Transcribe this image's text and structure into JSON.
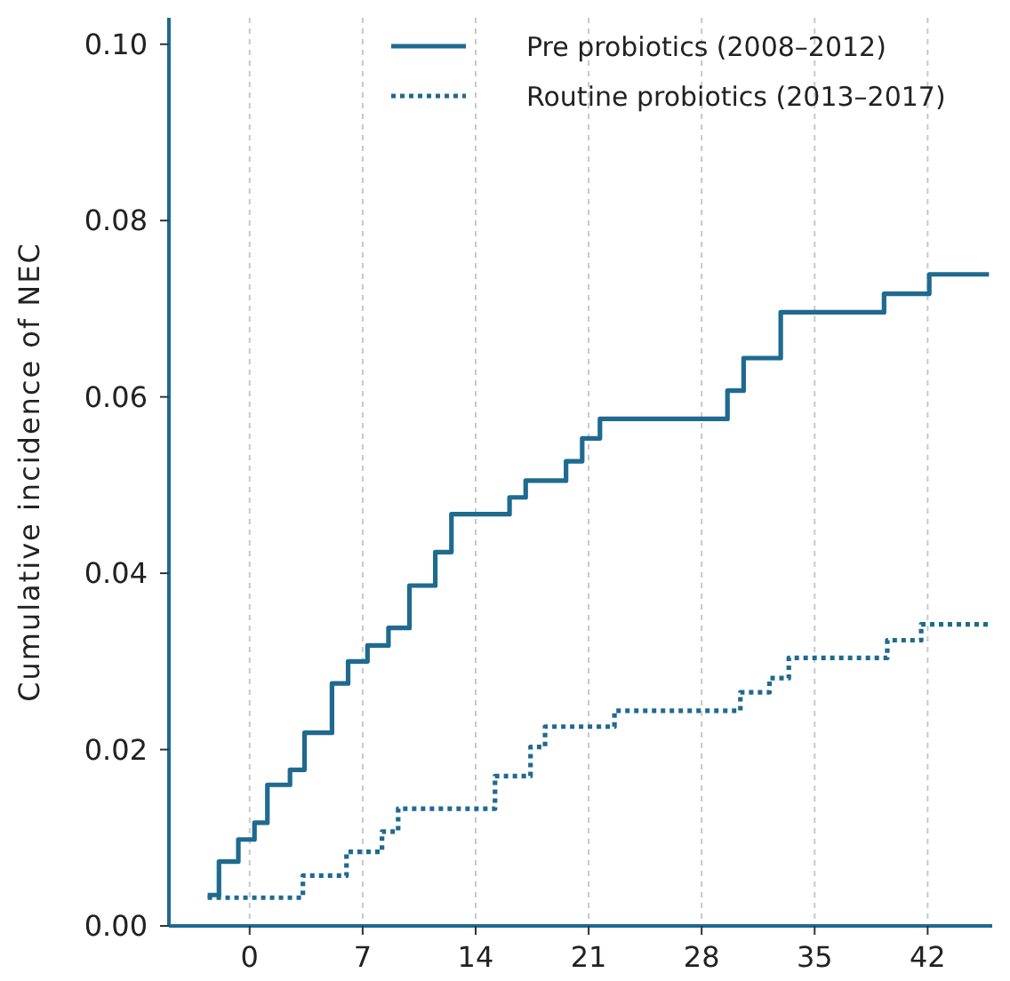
{
  "chart_data": {
    "type": "step",
    "ylabel": "Cumulative incidence of NEC",
    "xlim": [
      -5,
      46
    ],
    "xticks": [
      0,
      7,
      14,
      21,
      28,
      35,
      42
    ],
    "ylim": [
      0,
      0.103
    ],
    "yticks": [
      {
        "value": 0,
        "label": "0.00"
      },
      {
        "value": 0.02,
        "label": "0.02"
      },
      {
        "value": 0.04,
        "label": "0.04"
      },
      {
        "value": 0.06,
        "label": "0.06"
      },
      {
        "value": 0.08,
        "label": "0.08"
      },
      {
        "value": 0.1,
        "label": "0.10"
      }
    ],
    "grid": "x",
    "legend": "top right",
    "series": [
      {
        "name": "Pre probiotics (2008–2012)",
        "color": "#1f6a8f",
        "line_style": "solid",
        "x": [
          -2.6,
          -1.9,
          -0.7,
          0.3,
          1.1,
          2.5,
          3.4,
          5.1,
          6.1,
          7.3,
          8.6,
          9.9,
          11.5,
          12.5,
          16.1,
          17.1,
          19.6,
          20.6,
          21.7,
          29.6,
          30.6,
          32.9,
          39.3,
          42.1,
          45.8
        ],
        "values": [
          0.0035,
          0.0073,
          0.0098,
          0.0117,
          0.016,
          0.0177,
          0.0219,
          0.0275,
          0.03,
          0.0318,
          0.0338,
          0.0386,
          0.0424,
          0.0467,
          0.0486,
          0.0505,
          0.0527,
          0.0553,
          0.0575,
          0.0607,
          0.0644,
          0.0696,
          0.0717,
          0.0739,
          0.0739
        ]
      },
      {
        "name": "Routine probiotics (2013–2017)",
        "color": "#1f6a8f",
        "line_style": "dotted",
        "x": [
          -2.6,
          3.3,
          6.0,
          8.2,
          9.2,
          15.2,
          17.4,
          18.3,
          22.6,
          30.4,
          32.2,
          33.4,
          39.5,
          41.6,
          45.8
        ],
        "values": [
          0.0032,
          0.0057,
          0.0084,
          0.0107,
          0.0133,
          0.017,
          0.0203,
          0.0226,
          0.0244,
          0.0265,
          0.0281,
          0.0304,
          0.0324,
          0.0342,
          0.0342
        ]
      }
    ]
  }
}
